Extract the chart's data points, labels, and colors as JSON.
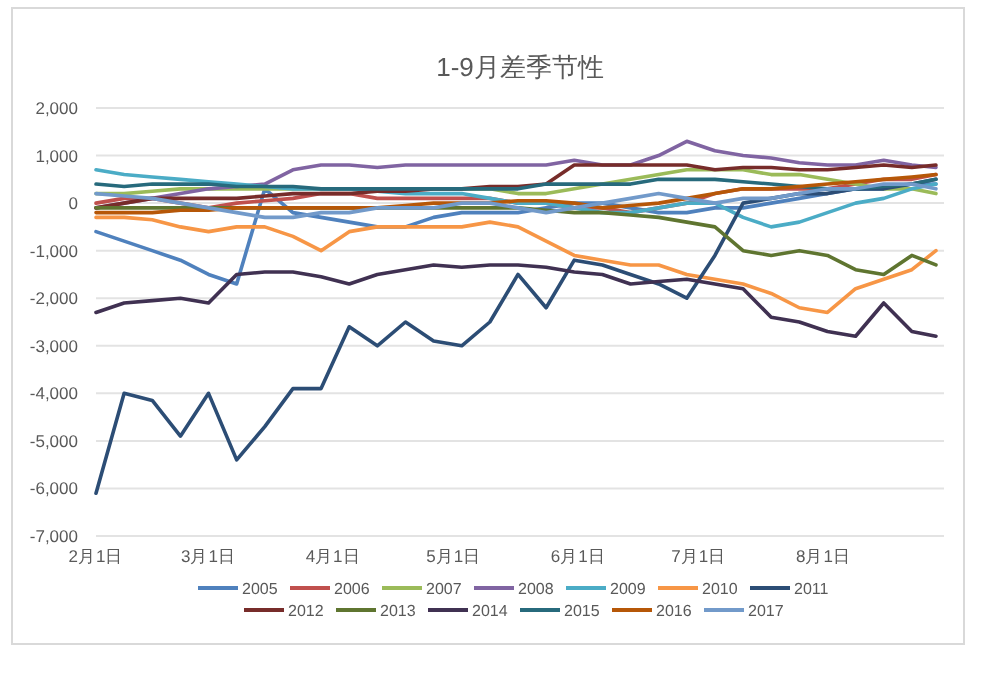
{
  "chart_data": {
    "type": "line",
    "title": "1-9月差季节性",
    "x": [
      "--02-01",
      "--02-08",
      "--02-15",
      "--02-22",
      "--03-01",
      "--03-08",
      "--03-15",
      "--03-22",
      "--03-29",
      "--04-05",
      "--04-12",
      "--04-19",
      "--04-26",
      "--05-03",
      "--05-10",
      "--05-17",
      "--05-24",
      "--05-31",
      "--06-07",
      "--06-14",
      "--06-21",
      "--06-28",
      "--07-05",
      "--07-12",
      "--07-19",
      "--07-26",
      "--08-02",
      "--08-09",
      "--08-16",
      "--08-23",
      "--08-29"
    ],
    "series": [
      {
        "name": "2005",
        "color": "#4f81bd",
        "values": [
          -600,
          -800,
          -1000,
          -1200,
          -1500,
          -1700,
          300,
          -200,
          -300,
          -400,
          -500,
          -500,
          -300,
          -200,
          -200,
          -200,
          -100,
          0,
          0,
          -100,
          -200,
          -200,
          -100,
          -100,
          0,
          100,
          200,
          300,
          300,
          400,
          400
        ]
      },
      {
        "name": "2006",
        "color": "#c0504d",
        "values": [
          0,
          100,
          100,
          0,
          -100,
          0,
          50,
          100,
          200,
          200,
          100,
          100,
          100,
          100,
          100,
          0,
          0,
          -100,
          -100,
          -200,
          -100,
          0,
          200,
          300,
          300,
          300,
          300,
          400,
          500,
          500,
          600
        ]
      },
      {
        "name": "2007",
        "color": "#9bbb59",
        "values": [
          200,
          200,
          250,
          300,
          300,
          300,
          300,
          300,
          300,
          300,
          300,
          300,
          300,
          300,
          300,
          200,
          200,
          300,
          400,
          500,
          600,
          700,
          700,
          700,
          600,
          600,
          500,
          400,
          300,
          300,
          200
        ]
      },
      {
        "name": "2008",
        "color": "#8064a2",
        "values": [
          -100,
          0,
          100,
          200,
          300,
          350,
          400,
          700,
          800,
          800,
          750,
          800,
          800,
          800,
          800,
          800,
          800,
          900,
          800,
          800,
          1000,
          1300,
          1100,
          1000,
          950,
          850,
          800,
          800,
          900,
          800,
          750
        ]
      },
      {
        "name": "2009",
        "color": "#4bacc6",
        "values": [
          700,
          600,
          550,
          500,
          450,
          400,
          350,
          300,
          300,
          300,
          250,
          200,
          200,
          200,
          100,
          0,
          0,
          -100,
          -200,
          -200,
          -100,
          0,
          0,
          -300,
          -500,
          -400,
          -200,
          0,
          100,
          300,
          400
        ]
      },
      {
        "name": "2010",
        "color": "#f79646",
        "values": [
          -300,
          -300,
          -350,
          -500,
          -600,
          -500,
          -500,
          -700,
          -1000,
          -600,
          -500,
          -500,
          -500,
          -500,
          -400,
          -500,
          -800,
          -1100,
          -1200,
          -1300,
          -1300,
          -1500,
          -1600,
          -1700,
          -1900,
          -2200,
          -2300,
          -1800,
          -1600,
          -1400,
          -1000
        ]
      },
      {
        "name": "2011",
        "color": "#2c4d75",
        "values": [
          -6100,
          -4000,
          -4150,
          -4900,
          -4000,
          -5400,
          -4700,
          -3900,
          -3900,
          -2600,
          -3000,
          -2500,
          -2900,
          -3000,
          -2500,
          -1500,
          -2200,
          -1200,
          -1300,
          -1500,
          -1700,
          -2000,
          -1100,
          0,
          100,
          200,
          200,
          300,
          300,
          400,
          500
        ]
      },
      {
        "name": "2012",
        "color": "#772c2a",
        "values": [
          -100,
          0,
          100,
          100,
          100,
          100,
          150,
          200,
          200,
          200,
          250,
          250,
          300,
          300,
          350,
          350,
          400,
          800,
          800,
          800,
          800,
          800,
          700,
          750,
          750,
          700,
          700,
          750,
          800,
          750,
          800
        ]
      },
      {
        "name": "2013",
        "color": "#5f7530",
        "values": [
          -100,
          -100,
          -100,
          -100,
          -100,
          -100,
          -100,
          -100,
          -100,
          -100,
          -100,
          -100,
          -100,
          -100,
          -100,
          -100,
          -150,
          -200,
          -200,
          -250,
          -300,
          -400,
          -500,
          -1000,
          -1100,
          -1000,
          -1100,
          -1400,
          -1500,
          -1100,
          -1300
        ]
      },
      {
        "name": "2014",
        "color": "#403152",
        "values": [
          -2300,
          -2100,
          -2050,
          -2000,
          -2100,
          -1500,
          -1450,
          -1450,
          -1550,
          -1700,
          -1500,
          -1400,
          -1300,
          -1350,
          -1300,
          -1300,
          -1350,
          -1450,
          -1500,
          -1700,
          -1650,
          -1600,
          -1700,
          -1800,
          -2400,
          -2500,
          -2700,
          -2800,
          -2100,
          -2700,
          -2800
        ]
      },
      {
        "name": "2015",
        "color": "#276a7c",
        "values": [
          400,
          350,
          400,
          400,
          400,
          350,
          350,
          350,
          300,
          300,
          300,
          300,
          300,
          300,
          300,
          300,
          400,
          400,
          400,
          400,
          500,
          500,
          500,
          450,
          400,
          350,
          300,
          300,
          350,
          400,
          500
        ]
      },
      {
        "name": "2016",
        "color": "#b65708",
        "values": [
          -200,
          -200,
          -200,
          -150,
          -150,
          -100,
          -100,
          -100,
          -100,
          -100,
          -100,
          -50,
          0,
          0,
          0,
          50,
          50,
          0,
          -100,
          -50,
          0,
          100,
          200,
          300,
          300,
          350,
          400,
          450,
          500,
          550,
          600
        ]
      },
      {
        "name": "2017",
        "color": "#729aca",
        "values": [
          200,
          150,
          100,
          0,
          -100,
          -200,
          -300,
          -300,
          -200,
          -200,
          -100,
          -100,
          -100,
          0,
          0,
          -100,
          -200,
          -100,
          0,
          100,
          200,
          100,
          0,
          100,
          100,
          200,
          300,
          300,
          400,
          400,
          300
        ]
      }
    ],
    "xlim": [
      "--02-01",
      "--08-31"
    ],
    "xticks": [
      {
        "value": "--02-01",
        "label": "2月1日"
      },
      {
        "value": "--03-01",
        "label": "3月1日"
      },
      {
        "value": "--04-01",
        "label": "4月1日"
      },
      {
        "value": "--05-01",
        "label": "5月1日"
      },
      {
        "value": "--06-01",
        "label": "6月1日"
      },
      {
        "value": "--07-01",
        "label": "7月1日"
      },
      {
        "value": "--08-01",
        "label": "8月1日"
      }
    ],
    "ylim": [
      -7000,
      2000
    ],
    "yticks": [
      {
        "value": 2000,
        "label": "2,000"
      },
      {
        "value": 1000,
        "label": "1,000"
      },
      0,
      {
        "value": -1000,
        "label": "-1,000"
      },
      {
        "value": -2000,
        "label": "-2,000"
      },
      {
        "value": -3000,
        "label": "-3,000"
      },
      {
        "value": -4000,
        "label": "-4,000"
      },
      {
        "value": -5000,
        "label": "-5,000"
      },
      {
        "value": -6000,
        "label": "-6,000"
      },
      {
        "value": -7000,
        "label": "-7,000"
      }
    ],
    "grid": "y",
    "legend": "bottom"
  }
}
